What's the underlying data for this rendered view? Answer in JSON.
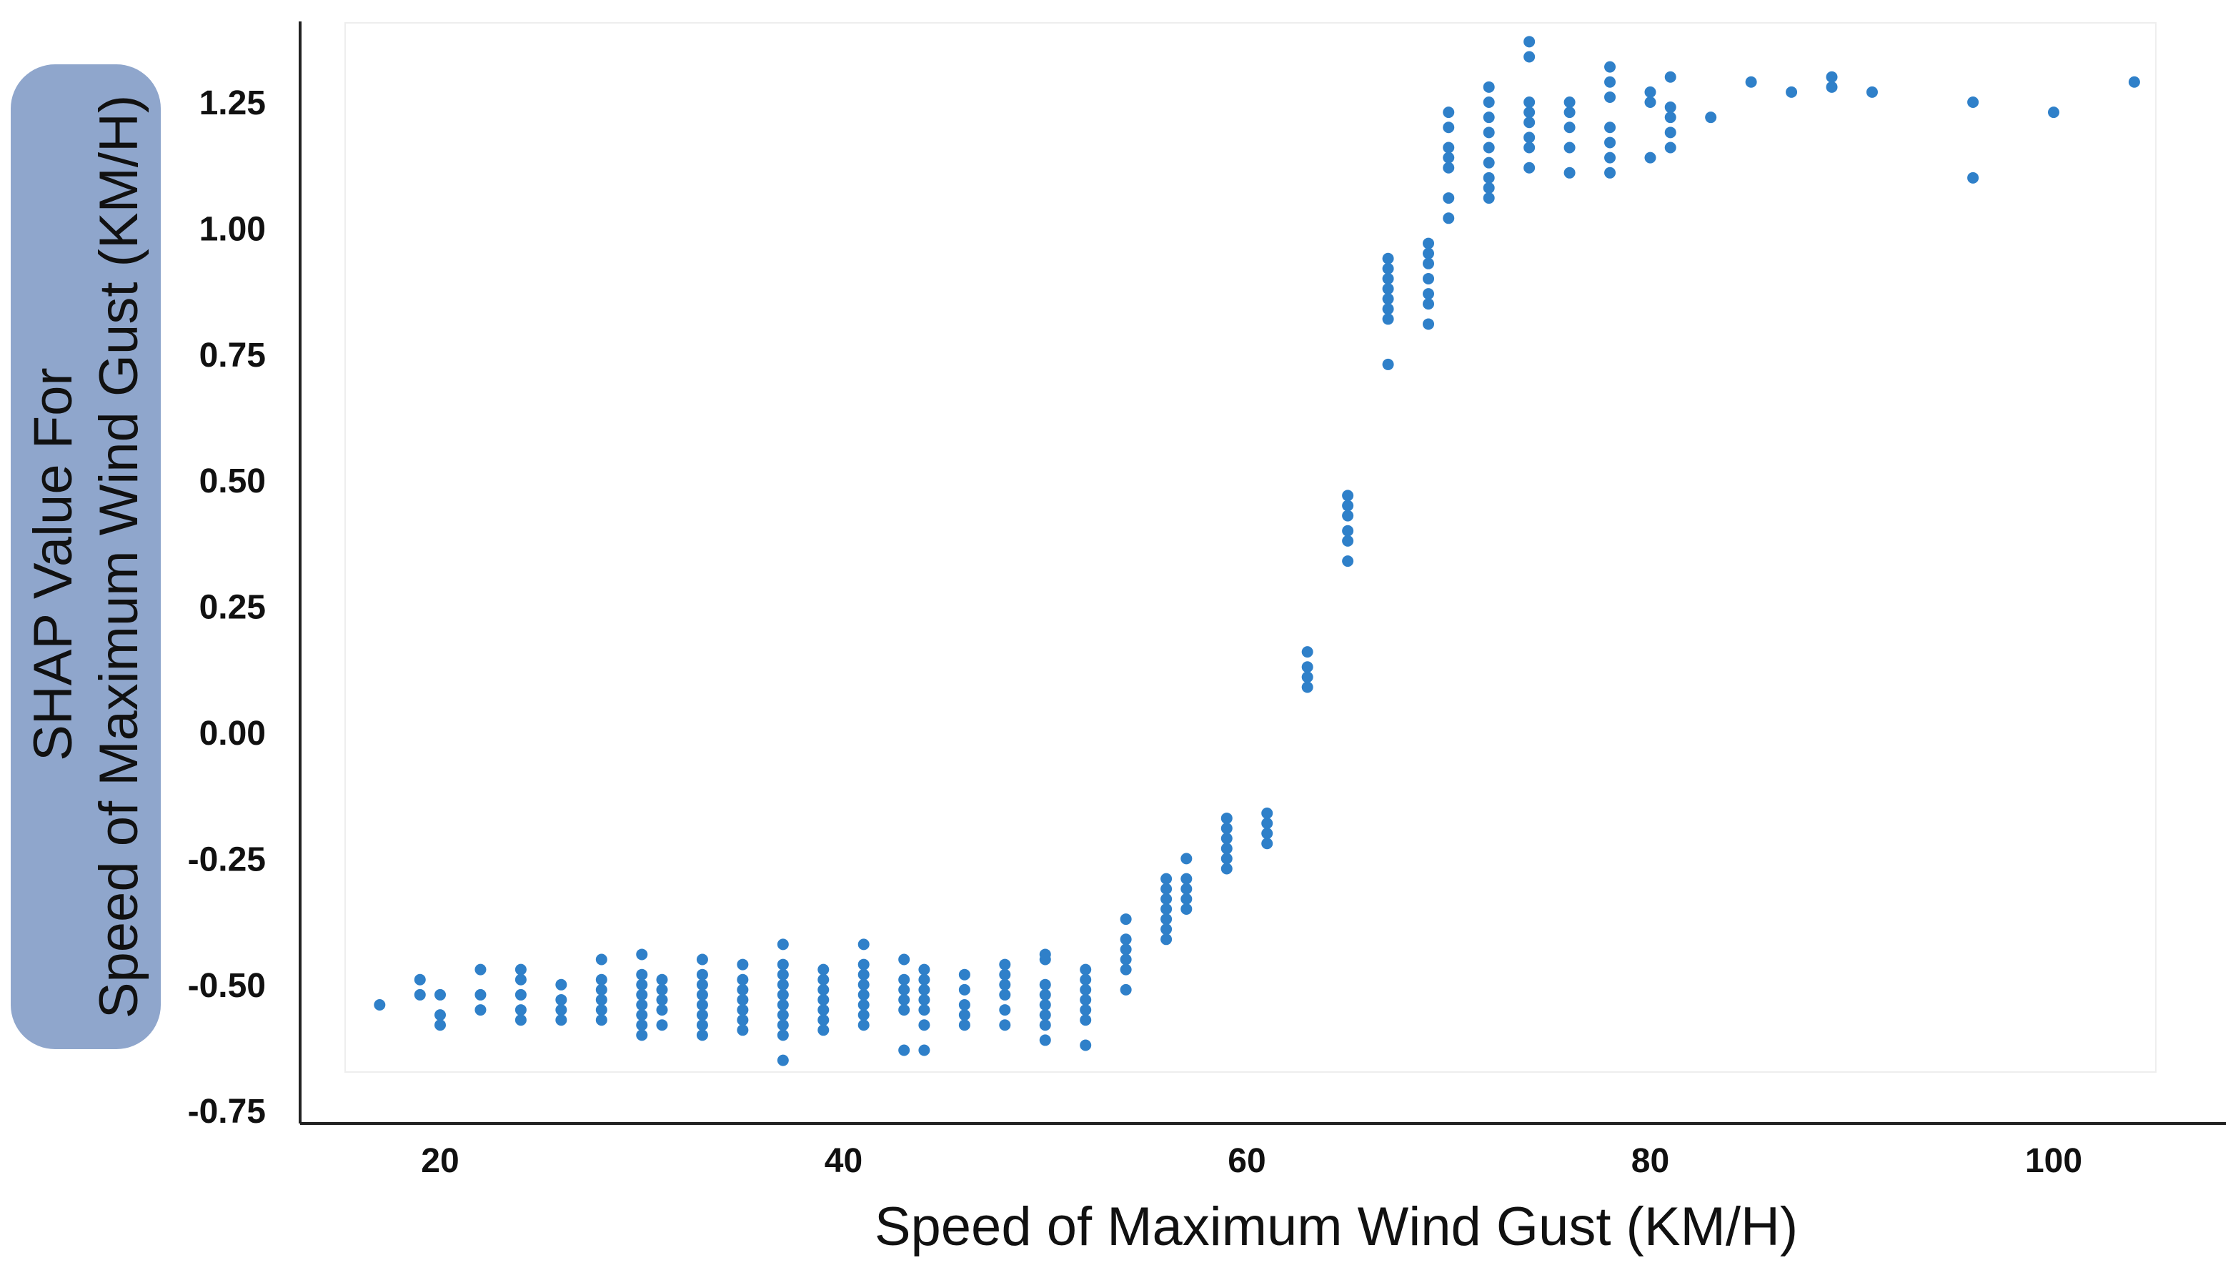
{
  "chart_data": {
    "type": "scatter",
    "title": "",
    "xlabel": "Speed of Maximum Wind Gust (KM/H)",
    "ylabel_lines": [
      "SHAP Value For",
      "Speed of Maximum Wind Gust (KM/H)"
    ],
    "xlim": [
      13,
      106
    ],
    "ylim": [
      -0.75,
      1.38
    ],
    "x_ticks": [
      20,
      40,
      60,
      80,
      100
    ],
    "x_tick_labels": [
      "20",
      "40",
      "60",
      "80",
      "100"
    ],
    "y_ticks": [
      -0.75,
      -0.5,
      -0.25,
      0.0,
      0.25,
      0.5,
      0.75,
      1.0,
      1.25
    ],
    "y_tick_labels": [
      "-0.75",
      "-0.50",
      "-0.25",
      "0.00",
      "0.25",
      "0.50",
      "0.75",
      "1.00",
      "1.25"
    ],
    "grid": false,
    "legend": "none",
    "colors": {
      "point": "#2f80c9",
      "ylabel_box": "#8fa6cc",
      "axis": "#222222",
      "plot_area_border": "#eeeeee"
    },
    "series": [
      {
        "points": [
          [
            17,
            -0.54
          ],
          [
            19,
            -0.49
          ],
          [
            19,
            -0.52
          ],
          [
            20,
            -0.52
          ],
          [
            20,
            -0.56
          ],
          [
            20,
            -0.58
          ],
          [
            22,
            -0.47
          ],
          [
            22,
            -0.52
          ],
          [
            22,
            -0.55
          ],
          [
            24,
            -0.47
          ],
          [
            24,
            -0.49
          ],
          [
            24,
            -0.52
          ],
          [
            24,
            -0.55
          ],
          [
            24,
            -0.57
          ],
          [
            26,
            -0.5
          ],
          [
            26,
            -0.53
          ],
          [
            26,
            -0.55
          ],
          [
            26,
            -0.57
          ],
          [
            28,
            -0.45
          ],
          [
            28,
            -0.49
          ],
          [
            28,
            -0.51
          ],
          [
            28,
            -0.53
          ],
          [
            28,
            -0.55
          ],
          [
            28,
            -0.57
          ],
          [
            30,
            -0.44
          ],
          [
            30,
            -0.48
          ],
          [
            30,
            -0.5
          ],
          [
            30,
            -0.52
          ],
          [
            30,
            -0.54
          ],
          [
            30,
            -0.56
          ],
          [
            30,
            -0.58
          ],
          [
            30,
            -0.6
          ],
          [
            31,
            -0.49
          ],
          [
            31,
            -0.51
          ],
          [
            31,
            -0.53
          ],
          [
            31,
            -0.55
          ],
          [
            31,
            -0.58
          ],
          [
            33,
            -0.45
          ],
          [
            33,
            -0.48
          ],
          [
            33,
            -0.5
          ],
          [
            33,
            -0.52
          ],
          [
            33,
            -0.54
          ],
          [
            33,
            -0.56
          ],
          [
            33,
            -0.58
          ],
          [
            33,
            -0.6
          ],
          [
            35,
            -0.46
          ],
          [
            35,
            -0.49
          ],
          [
            35,
            -0.51
          ],
          [
            35,
            -0.53
          ],
          [
            35,
            -0.55
          ],
          [
            35,
            -0.57
          ],
          [
            35,
            -0.59
          ],
          [
            37,
            -0.42
          ],
          [
            37,
            -0.46
          ],
          [
            37,
            -0.48
          ],
          [
            37,
            -0.5
          ],
          [
            37,
            -0.52
          ],
          [
            37,
            -0.54
          ],
          [
            37,
            -0.56
          ],
          [
            37,
            -0.58
          ],
          [
            37,
            -0.6
          ],
          [
            37,
            -0.65
          ],
          [
            39,
            -0.47
          ],
          [
            39,
            -0.49
          ],
          [
            39,
            -0.51
          ],
          [
            39,
            -0.53
          ],
          [
            39,
            -0.55
          ],
          [
            39,
            -0.57
          ],
          [
            39,
            -0.59
          ],
          [
            41,
            -0.42
          ],
          [
            41,
            -0.46
          ],
          [
            41,
            -0.48
          ],
          [
            41,
            -0.5
          ],
          [
            41,
            -0.52
          ],
          [
            41,
            -0.54
          ],
          [
            41,
            -0.56
          ],
          [
            41,
            -0.58
          ],
          [
            43,
            -0.45
          ],
          [
            43,
            -0.49
          ],
          [
            43,
            -0.51
          ],
          [
            43,
            -0.53
          ],
          [
            43,
            -0.55
          ],
          [
            43,
            -0.63
          ],
          [
            44,
            -0.47
          ],
          [
            44,
            -0.49
          ],
          [
            44,
            -0.51
          ],
          [
            44,
            -0.53
          ],
          [
            44,
            -0.55
          ],
          [
            44,
            -0.58
          ],
          [
            44,
            -0.63
          ],
          [
            46,
            -0.48
          ],
          [
            46,
            -0.51
          ],
          [
            46,
            -0.54
          ],
          [
            46,
            -0.56
          ],
          [
            46,
            -0.58
          ],
          [
            48,
            -0.46
          ],
          [
            48,
            -0.48
          ],
          [
            48,
            -0.5
          ],
          [
            48,
            -0.52
          ],
          [
            48,
            -0.55
          ],
          [
            48,
            -0.58
          ],
          [
            50,
            -0.44
          ],
          [
            50,
            -0.45
          ],
          [
            50,
            -0.5
          ],
          [
            50,
            -0.52
          ],
          [
            50,
            -0.54
          ],
          [
            50,
            -0.56
          ],
          [
            50,
            -0.58
          ],
          [
            50,
            -0.61
          ],
          [
            52,
            -0.47
          ],
          [
            52,
            -0.49
          ],
          [
            52,
            -0.51
          ],
          [
            52,
            -0.53
          ],
          [
            52,
            -0.55
          ],
          [
            52,
            -0.57
          ],
          [
            52,
            -0.62
          ],
          [
            54,
            -0.37
          ],
          [
            54,
            -0.41
          ],
          [
            54,
            -0.43
          ],
          [
            54,
            -0.45
          ],
          [
            54,
            -0.47
          ],
          [
            54,
            -0.51
          ],
          [
            56,
            -0.29
          ],
          [
            56,
            -0.31
          ],
          [
            56,
            -0.33
          ],
          [
            56,
            -0.35
          ],
          [
            56,
            -0.37
          ],
          [
            56,
            -0.39
          ],
          [
            56,
            -0.41
          ],
          [
            57,
            -0.25
          ],
          [
            57,
            -0.29
          ],
          [
            57,
            -0.31
          ],
          [
            57,
            -0.33
          ],
          [
            57,
            -0.35
          ],
          [
            59,
            -0.17
          ],
          [
            59,
            -0.19
          ],
          [
            59,
            -0.21
          ],
          [
            59,
            -0.23
          ],
          [
            59,
            -0.25
          ],
          [
            59,
            -0.27
          ],
          [
            61,
            -0.16
          ],
          [
            61,
            -0.18
          ],
          [
            61,
            -0.2
          ],
          [
            61,
            -0.22
          ],
          [
            63,
            0.16
          ],
          [
            63,
            0.13
          ],
          [
            63,
            0.11
          ],
          [
            63,
            0.09
          ],
          [
            65,
            0.47
          ],
          [
            65,
            0.45
          ],
          [
            65,
            0.43
          ],
          [
            65,
            0.4
          ],
          [
            65,
            0.38
          ],
          [
            65,
            0.34
          ],
          [
            67,
            0.94
          ],
          [
            67,
            0.92
          ],
          [
            67,
            0.9
          ],
          [
            67,
            0.88
          ],
          [
            67,
            0.86
          ],
          [
            67,
            0.84
          ],
          [
            67,
            0.82
          ],
          [
            67,
            0.73
          ],
          [
            69,
            0.97
          ],
          [
            69,
            0.95
          ],
          [
            69,
            0.93
          ],
          [
            69,
            0.9
          ],
          [
            69,
            0.87
          ],
          [
            69,
            0.85
          ],
          [
            69,
            0.81
          ],
          [
            70,
            1.23
          ],
          [
            70,
            1.2
          ],
          [
            70,
            1.16
          ],
          [
            70,
            1.14
          ],
          [
            70,
            1.12
          ],
          [
            70,
            1.06
          ],
          [
            70,
            1.02
          ],
          [
            72,
            1.28
          ],
          [
            72,
            1.25
          ],
          [
            72,
            1.22
          ],
          [
            72,
            1.19
          ],
          [
            72,
            1.16
          ],
          [
            72,
            1.13
          ],
          [
            72,
            1.1
          ],
          [
            72,
            1.08
          ],
          [
            72,
            1.06
          ],
          [
            74,
            1.37
          ],
          [
            74,
            1.34
          ],
          [
            74,
            1.25
          ],
          [
            74,
            1.23
          ],
          [
            74,
            1.21
          ],
          [
            74,
            1.18
          ],
          [
            74,
            1.16
          ],
          [
            74,
            1.12
          ],
          [
            76,
            1.25
          ],
          [
            76,
            1.23
          ],
          [
            76,
            1.2
          ],
          [
            76,
            1.16
          ],
          [
            76,
            1.11
          ],
          [
            78,
            1.32
          ],
          [
            78,
            1.29
          ],
          [
            78,
            1.26
          ],
          [
            78,
            1.2
          ],
          [
            78,
            1.17
          ],
          [
            78,
            1.14
          ],
          [
            78,
            1.11
          ],
          [
            80,
            1.27
          ],
          [
            80,
            1.25
          ],
          [
            80,
            1.14
          ],
          [
            81,
            1.3
          ],
          [
            81,
            1.24
          ],
          [
            81,
            1.22
          ],
          [
            81,
            1.19
          ],
          [
            81,
            1.16
          ],
          [
            83,
            1.22
          ],
          [
            85,
            1.29
          ],
          [
            87,
            1.27
          ],
          [
            89,
            1.3
          ],
          [
            89,
            1.28
          ],
          [
            91,
            1.27
          ],
          [
            96,
            1.25
          ],
          [
            96,
            1.1
          ],
          [
            100,
            1.23
          ],
          [
            104,
            1.29
          ]
        ]
      }
    ]
  }
}
